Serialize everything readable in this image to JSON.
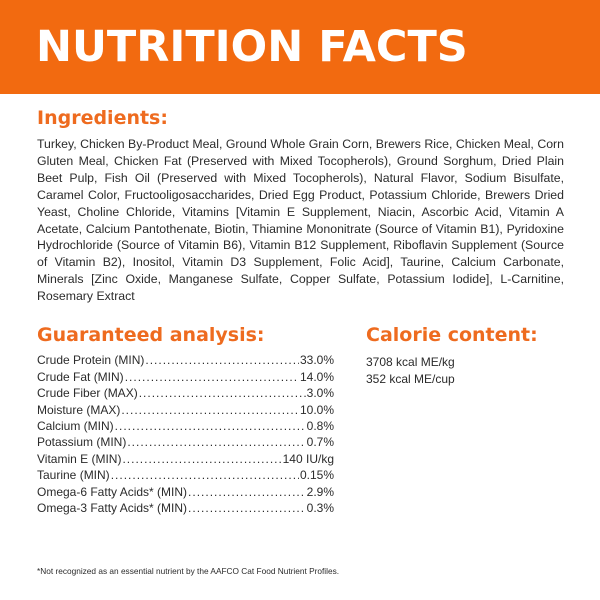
{
  "banner": {
    "title": "NUTRITION FACTS",
    "background_color": "#f26a10"
  },
  "ingredients": {
    "heading": "Ingredients:",
    "text": "Turkey, Chicken By-Product Meal, Ground Whole Grain Corn, Brewers Rice, Chicken Meal, Corn Gluten Meal, Chicken Fat (Preserved with Mixed Tocopherols), Ground Sorghum, Dried Plain Beet Pulp, Fish Oil (Preserved with Mixed Tocopherols), Natural Flavor, Sodium Bisulfate, Caramel Color, Fructooligosaccharides, Dried Egg Product, Potassium Chloride, Brewers Dried Yeast, Choline Chloride, Vitamins [Vitamin E Supplement, Niacin, Ascorbic Acid, Vitamin A Acetate, Calcium Pantothenate, Biotin, Thiamine Mononitrate (Source of Vitamin B1), Pyridoxine Hydrochloride (Source of Vitamin B6), Vitamin B12 Supplement, Riboflavin Supplement (Source of Vitamin B2), Inositol, Vitamin D3 Supplement, Folic Acid], Taurine, Calcium Carbonate, Minerals [Zinc Oxide, Manganese Sulfate, Copper Sulfate, Potassium Iodide], L-Carnitine, Rosemary Extract"
  },
  "guaranteed_analysis": {
    "heading": "Guaranteed analysis:",
    "rows": [
      {
        "label": "Crude Protein (MIN)",
        "value": "33.0%"
      },
      {
        "label": "Crude Fat (MIN)",
        "value": "14.0%"
      },
      {
        "label": "Crude Fiber (MAX)",
        "value": "3.0%"
      },
      {
        "label": "Moisture (MAX)",
        "value": "10.0%"
      },
      {
        "label": "Calcium (MIN)",
        "value": "0.8%"
      },
      {
        "label": "Potassium (MIN)",
        "value": "0.7%"
      },
      {
        "label": "Vitamin E (MIN)",
        "value": "140 IU/kg"
      },
      {
        "label": "Taurine (MIN)",
        "value": "0.15%"
      },
      {
        "label": "Omega-6 Fatty Acids* (MIN)",
        "value": "2.9%"
      },
      {
        "label": "Omega-3 Fatty Acids* (MIN)",
        "value": "0.3%"
      }
    ]
  },
  "calorie_content": {
    "heading": "Calorie content:",
    "lines": [
      "3708 kcal ME/kg",
      "352 kcal ME/cup"
    ]
  },
  "footnote": "*Not recognized as an essential nutrient by the AAFCO Cat Food Nutrient Profiles.",
  "colors": {
    "accent": "#ee6b1f",
    "text": "#2b2b2b"
  }
}
